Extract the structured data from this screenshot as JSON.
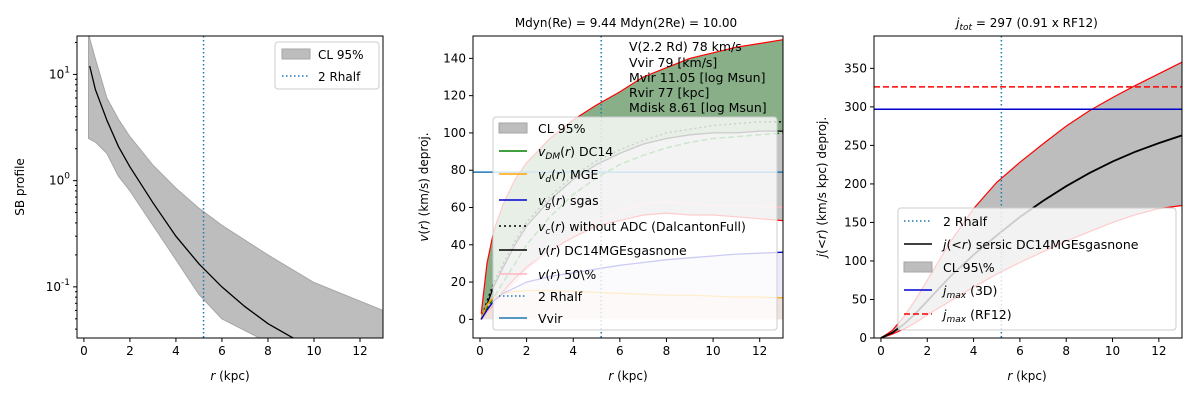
{
  "chart_data": [
    {
      "type": "area",
      "title": "",
      "xlabel": "r (kpc)",
      "ylabel": "SB profile",
      "yscale": "log",
      "xlim": [
        -0.3,
        13
      ],
      "ylim": [
        0.033,
        23
      ],
      "xticks": [
        "0",
        "2",
        "4",
        "6",
        "8",
        "10",
        "12"
      ],
      "yticks": [
        "10^-1",
        "10^0",
        "10^1"
      ],
      "vline_x": 5.2,
      "legend": [
        "CL 95%",
        "2 Rhalf"
      ],
      "band": {
        "x": [
          0.2,
          0.5,
          1,
          1.5,
          2,
          3,
          4,
          5,
          6,
          8,
          10,
          13
        ],
        "upper": [
          24,
          14,
          6,
          3.8,
          2.6,
          1.4,
          0.85,
          0.55,
          0.38,
          0.2,
          0.11,
          0.06
        ],
        "lower": [
          2.5,
          2.3,
          1.8,
          1.1,
          0.8,
          0.38,
          0.18,
          0.085,
          0.05,
          0.03,
          0.025,
          0.02
        ]
      },
      "line": {
        "x": [
          0.25,
          0.5,
          1,
          1.5,
          2,
          3,
          4,
          5,
          6,
          7,
          8,
          9.2
        ],
        "y": [
          12,
          7.2,
          3.7,
          2.1,
          1.35,
          0.62,
          0.3,
          0.165,
          0.1,
          0.065,
          0.045,
          0.032
        ]
      }
    },
    {
      "type": "line",
      "title": "Mdyn(Re) = 9.44  Mdyn(2Re) = 10.00",
      "xlabel": "r (kpc)",
      "ylabel": "v(r) (km/s) deproj.",
      "xlim": [
        -0.3,
        13
      ],
      "ylim": [
        -10,
        152
      ],
      "xticks": [
        "0",
        "2",
        "4",
        "6",
        "8",
        "10",
        "12"
      ],
      "yticks": [
        "0",
        "20",
        "40",
        "60",
        "80",
        "100",
        "120",
        "140"
      ],
      "vline_x": 5.2,
      "vvir": 79,
      "annotations": [
        "V(2.2 Rd) 78 km/s",
        "Vvir 79 [km/s]",
        "Mvir 11.05 [log Msun]",
        "Rvir 77 [kpc]",
        "Mdisk 8.61 [log Msun]"
      ],
      "legend": [
        "CL 95%",
        "v_DM(r) DC14",
        "v_d(r) MGE",
        "v_g(r) sgas",
        "v_c(r) without ADC (DalcantonFull)",
        "v(r) DC14MGEsgasnone",
        "v(r) 50\\%",
        "2 Rhalf",
        "Vvir"
      ],
      "x": [
        0.05,
        0.3,
        0.6,
        1,
        1.5,
        2,
        3,
        4,
        5,
        6,
        7,
        8,
        9,
        10,
        11,
        12,
        13
      ],
      "series": [
        {
          "name": "upper",
          "values": [
            3,
            30,
            48,
            62,
            75,
            84,
            97,
            107,
            115,
            122,
            130,
            135,
            140,
            143,
            146,
            148,
            150
          ]
        },
        {
          "name": "lower",
          "values": [
            0,
            5,
            10,
            15,
            22,
            28,
            37,
            44,
            50,
            53,
            56,
            57,
            56,
            56,
            55,
            54,
            53
          ]
        },
        {
          "name": "v50",
          "values": [
            0,
            4,
            8,
            14,
            20,
            27,
            37,
            46,
            53,
            58,
            62,
            63,
            62,
            61,
            61,
            61,
            60
          ]
        },
        {
          "name": "vc",
          "values": [
            0,
            10,
            20,
            30,
            42,
            52,
            66,
            77,
            85,
            91,
            96,
            100,
            102,
            104,
            105,
            106,
            106
          ]
        },
        {
          "name": "vdm",
          "values": [
            0,
            6,
            12,
            20,
            30,
            40,
            55,
            67,
            76,
            83,
            88,
            92,
            95,
            97,
            98,
            99,
            100
          ]
        },
        {
          "name": "vtot",
          "values": [
            0,
            8,
            18,
            28,
            40,
            50,
            64,
            75,
            83,
            89,
            94,
            97,
            99,
            100,
            100,
            101,
            101
          ]
        },
        {
          "name": "vd",
          "values": [
            0,
            8,
            12,
            14,
            15,
            15.5,
            15.5,
            15,
            14.5,
            14,
            13.5,
            13,
            13,
            12.5,
            12,
            12,
            11.5
          ]
        },
        {
          "name": "vg",
          "values": [
            0,
            5,
            10,
            14,
            17,
            20,
            23,
            25,
            27,
            29,
            30.5,
            32,
            33,
            34,
            35,
            35.5,
            36
          ]
        }
      ]
    },
    {
      "type": "area",
      "title": "j_tot = 297 (0.91 x RF12)",
      "title_prefix": "j",
      "title_sub": "tot",
      "title_rest": " = 297 (0.91 x RF12)",
      "xlabel": "r (kpc)",
      "ylabel": "j(<r) (km/s kpc) deproj.",
      "xlim": [
        -0.3,
        13
      ],
      "ylim": [
        0,
        392
      ],
      "xticks": [
        "0",
        "2",
        "4",
        "6",
        "8",
        "10",
        "12"
      ],
      "yticks": [
        "0",
        "50",
        "100",
        "150",
        "200",
        "250",
        "300",
        "350"
      ],
      "vline_x": 5.2,
      "jmax_3d": 297,
      "jmax_rf12": 326,
      "legend": [
        "2 Rhalf",
        "j(<r) sersic DC14MGEsgasnone",
        "CL 95\\%",
        "j_max (3D)",
        "j_max (RF12)"
      ],
      "x": [
        0,
        0.5,
        1,
        1.5,
        2,
        3,
        4,
        5,
        6,
        7,
        8,
        9,
        10,
        11,
        12,
        13
      ],
      "series": [
        {
          "name": "upper",
          "values": [
            0,
            10,
            28,
            50,
            75,
            125,
            168,
            202,
            228,
            252,
            275,
            295,
            312,
            328,
            343,
            358
          ]
        },
        {
          "name": "lower",
          "values": [
            0,
            5,
            12,
            20,
            30,
            48,
            66,
            83,
            98,
            112,
            126,
            138,
            150,
            160,
            168,
            172
          ]
        },
        {
          "name": "j",
          "values": [
            0,
            7,
            18,
            32,
            48,
            80,
            108,
            133,
            157,
            178,
            197,
            214,
            229,
            242,
            253,
            263
          ]
        }
      ]
    }
  ]
}
